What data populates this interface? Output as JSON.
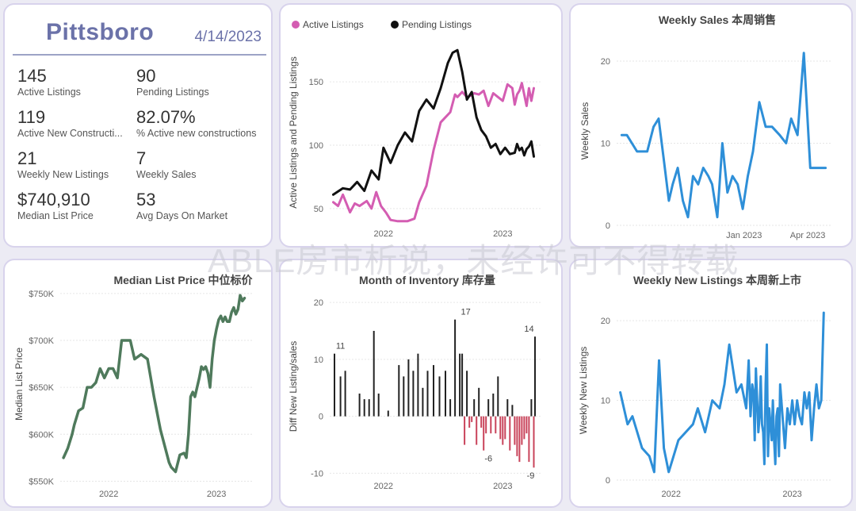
{
  "kpi": {
    "city": "Pittsboro",
    "date": "4/14/2023",
    "items": [
      {
        "value": "145",
        "label": "Active Listings"
      },
      {
        "value": "90",
        "label": "Pending Listings"
      },
      {
        "value": "119",
        "label": "Active New Constructi..."
      },
      {
        "value": "82.07%",
        "label": "% Active new constructions"
      },
      {
        "value": "21",
        "label": "Weekly New Listings"
      },
      {
        "value": "7",
        "label": "Weekly Sales"
      },
      {
        "value": "$740,910",
        "label": "Median List Price"
      },
      {
        "value": "53",
        "label": "Avg Days On Market"
      }
    ]
  },
  "watermark": "ABLE房市析说，未经许可不得转载",
  "chart_data": [
    {
      "id": "listings",
      "type": "line",
      "title": "",
      "legend": [
        "Active Listings",
        "Pending Listings"
      ],
      "legend_position": "top-left",
      "ylabel": "Active Listings and Pending Listings",
      "xlabel": "",
      "xlim": [
        2021.55,
        2023.33
      ],
      "ylim": [
        38,
        182
      ],
      "yticks": [
        50,
        100,
        150
      ],
      "xticks": [
        {
          "x": 2022.0,
          "label": "2022"
        },
        {
          "x": 2023.0,
          "label": "2023"
        }
      ],
      "colors": [
        "#d45db2",
        "#111111"
      ],
      "series": [
        {
          "name": "Active Listings",
          "x": [
            2021.58,
            2021.62,
            2021.66,
            2021.72,
            2021.76,
            2021.8,
            2021.86,
            2021.9,
            2021.94,
            2021.98,
            2022.02,
            2022.06,
            2022.12,
            2022.2,
            2022.26,
            2022.3,
            2022.36,
            2022.42,
            2022.48,
            2022.52,
            2022.56,
            2022.6,
            2022.62,
            2022.66,
            2022.7,
            2022.73,
            2022.76,
            2022.8,
            2022.84,
            2022.88,
            2022.92,
            2022.96,
            2023.0,
            2023.04,
            2023.08,
            2023.1,
            2023.12,
            2023.14,
            2023.16,
            2023.18,
            2023.2,
            2023.22,
            2023.24,
            2023.26
          ],
          "values": [
            55,
            52,
            61,
            47,
            54,
            52,
            56,
            50,
            63,
            52,
            47,
            41,
            40,
            40,
            42,
            55,
            68,
            96,
            118,
            122,
            126,
            140,
            138,
            142,
            138,
            139,
            141,
            140,
            143,
            131,
            141,
            138,
            135,
            148,
            145,
            132,
            140,
            143,
            149,
            140,
            131,
            145,
            135,
            145
          ]
        },
        {
          "name": "Pending Listings",
          "x": [
            2021.58,
            2021.66,
            2021.72,
            2021.78,
            2021.84,
            2021.9,
            2021.96,
            2022.0,
            2022.06,
            2022.12,
            2022.18,
            2022.24,
            2022.3,
            2022.36,
            2022.42,
            2022.48,
            2022.54,
            2022.58,
            2022.62,
            2022.66,
            2022.7,
            2022.74,
            2022.78,
            2022.82,
            2022.86,
            2022.9,
            2022.94,
            2022.98,
            2023.02,
            2023.06,
            2023.1,
            2023.12,
            2023.14,
            2023.16,
            2023.18,
            2023.2,
            2023.22,
            2023.24,
            2023.26
          ],
          "values": [
            61,
            66,
            65,
            71,
            64,
            80,
            73,
            98,
            86,
            100,
            110,
            103,
            127,
            136,
            129,
            145,
            165,
            173,
            175,
            158,
            136,
            142,
            122,
            112,
            107,
            98,
            101,
            93,
            98,
            93,
            94,
            101,
            96,
            98,
            92,
            97,
            99,
            103,
            91
          ]
        }
      ]
    },
    {
      "id": "weekly_sales",
      "type": "line",
      "title": "Weekly Sales 本周销售",
      "ylabel": "Weekly Sales",
      "xlabel": "",
      "xlim": [
        2022.5,
        2023.34
      ],
      "ylim": [
        0,
        23
      ],
      "yticks": [
        0,
        10,
        20
      ],
      "xticks": [
        {
          "x": 2023.0,
          "label": "Jan 2023"
        },
        {
          "x": 2023.25,
          "label": "Apr 2023"
        }
      ],
      "colors": [
        "#2e8fd8"
      ],
      "series": [
        {
          "name": "Weekly Sales",
          "x": [
            2022.52,
            2022.54,
            2022.56,
            2022.58,
            2022.6,
            2022.62,
            2022.645,
            2022.665,
            2022.685,
            2022.705,
            2022.72,
            2022.74,
            2022.76,
            2022.78,
            2022.8,
            2022.82,
            2022.84,
            2022.86,
            2022.875,
            2022.895,
            2022.915,
            2022.935,
            2022.955,
            2022.975,
            2022.995,
            2023.015,
            2023.035,
            2023.06,
            2023.085,
            2023.11,
            2023.14,
            2023.165,
            2023.185,
            2023.21,
            2023.235,
            2023.26,
            2023.285,
            2023.32
          ],
          "values": [
            11,
            11,
            10,
            9,
            9,
            9,
            12,
            13,
            8,
            3,
            5,
            7,
            3,
            1,
            6,
            5,
            7,
            6,
            5,
            1,
            10,
            4,
            6,
            5,
            2,
            6,
            9,
            15,
            12,
            12,
            11,
            10,
            13,
            11,
            21,
            7,
            7,
            7
          ]
        }
      ]
    },
    {
      "id": "median_list_price",
      "type": "line",
      "title": "Median List Price  中位标价",
      "ylabel": "Median List Price",
      "xlabel": "",
      "xlim": [
        2021.55,
        2023.33
      ],
      "ylim": [
        547000,
        760000
      ],
      "yticks": [
        {
          "v": 550000,
          "label": "$550K"
        },
        {
          "v": 600000,
          "label": "$600K"
        },
        {
          "v": 650000,
          "label": "$650K"
        },
        {
          "v": 700000,
          "label": "$700K"
        },
        {
          "v": 750000,
          "label": "$750K"
        }
      ],
      "xticks": [
        {
          "x": 2022.0,
          "label": "2022"
        },
        {
          "x": 2023.0,
          "label": "2023"
        }
      ],
      "colors": [
        "#4f7a5c"
      ],
      "series": [
        {
          "name": "Median List Price",
          "x": [
            2021.58,
            2021.62,
            2021.66,
            2021.68,
            2021.72,
            2021.76,
            2021.8,
            2021.84,
            2021.88,
            2021.92,
            2021.96,
            2022.0,
            2022.04,
            2022.08,
            2022.12,
            2022.16,
            2022.2,
            2022.24,
            2022.3,
            2022.36,
            2022.42,
            2022.48,
            2022.56,
            2022.58,
            2022.62,
            2022.66,
            2022.7,
            2022.72,
            2022.74,
            2022.76,
            2022.78,
            2022.8,
            2022.84,
            2022.86,
            2022.88,
            2022.9,
            2022.92,
            2022.94,
            2022.96,
            2022.98,
            2023.0,
            2023.02,
            2023.04,
            2023.06,
            2023.08,
            2023.1,
            2023.12,
            2023.14,
            2023.16,
            2023.18,
            2023.2,
            2023.22,
            2023.24,
            2023.26
          ],
          "values": [
            575000,
            585000,
            600000,
            610000,
            625000,
            628000,
            650000,
            650000,
            655000,
            670000,
            660000,
            670000,
            670000,
            660000,
            700000,
            700000,
            700000,
            680000,
            685000,
            680000,
            640000,
            605000,
            570000,
            565000,
            560000,
            578000,
            580000,
            575000,
            600000,
            640000,
            645000,
            640000,
            660000,
            672000,
            669000,
            672000,
            665000,
            650000,
            680000,
            700000,
            712000,
            722000,
            726000,
            720000,
            725000,
            720000,
            720000,
            730000,
            735000,
            728000,
            733000,
            748000,
            742000,
            745000
          ]
        }
      ]
    },
    {
      "id": "month_of_inventory",
      "type": "bar",
      "title": "Month of Inventory 库存量",
      "ylabel": "Diff New Listing/sales",
      "xlabel": "",
      "xlim": [
        2021.55,
        2023.33
      ],
      "ylim": [
        -10.5,
        21
      ],
      "yticks": [
        -10,
        0,
        10,
        20
      ],
      "xticks": [
        {
          "x": 2022.0,
          "label": "2022"
        },
        {
          "x": 2023.0,
          "label": "2023"
        }
      ],
      "colors": {
        "positive": "#222222",
        "negative": "#c9435a"
      },
      "data_labels": [
        {
          "x": 2021.6,
          "v": 11,
          "label": "11"
        },
        {
          "x": 2022.65,
          "v": 17,
          "label": "17"
        },
        {
          "x": 2022.84,
          "v": -6,
          "label": "-6"
        },
        {
          "x": 2023.26,
          "v": 14,
          "label": "14"
        },
        {
          "x": 2023.26,
          "v": -9,
          "label": "-9"
        }
      ],
      "series": [
        {
          "name": "Diff New Listing/sales",
          "x": [
            2021.59,
            2021.64,
            2021.68,
            2021.8,
            2021.84,
            2021.88,
            2021.92,
            2021.96,
            2022.04,
            2022.13,
            2022.17,
            2022.21,
            2022.25,
            2022.29,
            2022.33,
            2022.37,
            2022.42,
            2022.47,
            2022.52,
            2022.56,
            2022.6,
            2022.64,
            2022.66,
            2022.68,
            2022.7,
            2022.72,
            2022.74,
            2022.76,
            2022.78,
            2022.8,
            2022.82,
            2022.84,
            2022.86,
            2022.88,
            2022.9,
            2022.92,
            2022.94,
            2022.96,
            2022.98,
            2023.0,
            2023.02,
            2023.04,
            2023.06,
            2023.08,
            2023.1,
            2023.12,
            2023.14,
            2023.16,
            2023.18,
            2023.2,
            2023.22,
            2023.24,
            2023.26,
            2023.27
          ],
          "values": [
            11,
            7,
            8,
            4,
            3,
            3,
            15,
            4,
            1,
            9,
            7,
            10,
            8,
            11,
            5,
            8,
            9,
            7,
            8,
            3,
            17,
            11,
            11,
            -5,
            8,
            -2,
            -1,
            3,
            -5,
            5,
            -2,
            -6,
            -3,
            3,
            -3,
            4,
            -3,
            7,
            -4,
            -5,
            -4,
            3,
            -6,
            2,
            -5,
            -7,
            -8,
            -5,
            -4,
            -3,
            -8,
            3,
            -9,
            14
          ]
        }
      ]
    },
    {
      "id": "weekly_new_listings",
      "type": "line",
      "title": "Weekly New Listings  本周新上市",
      "ylabel": "Weekly New Listings",
      "xlabel": "",
      "xlim": [
        2021.55,
        2023.33
      ],
      "ylim": [
        -0.5,
        23
      ],
      "yticks": [
        0,
        10,
        20
      ],
      "xticks": [
        {
          "x": 2022.0,
          "label": "2022"
        },
        {
          "x": 2023.0,
          "label": "2023"
        }
      ],
      "colors": [
        "#2e8fd8"
      ],
      "series": [
        {
          "name": "Weekly New Listings",
          "x": [
            2021.58,
            2021.64,
            2021.68,
            2021.76,
            2021.82,
            2021.86,
            2021.9,
            2021.94,
            2021.98,
            2022.02,
            2022.06,
            2022.12,
            2022.18,
            2022.22,
            2022.28,
            2022.34,
            2022.4,
            2022.44,
            2022.48,
            2022.54,
            2022.58,
            2022.62,
            2022.64,
            2022.655,
            2022.67,
            2022.68,
            2022.69,
            2022.7,
            2022.71,
            2022.72,
            2022.73,
            2022.74,
            2022.75,
            2022.76,
            2022.77,
            2022.78,
            2022.79,
            2022.8,
            2022.81,
            2022.82,
            2022.83,
            2022.84,
            2022.85,
            2022.86,
            2022.87,
            2022.88,
            2022.89,
            2022.9,
            2022.92,
            2022.94,
            2022.96,
            2022.98,
            2023.0,
            2023.02,
            2023.04,
            2023.06,
            2023.08,
            2023.1,
            2023.12,
            2023.14,
            2023.16,
            2023.18,
            2023.2,
            2023.22,
            2023.24,
            2023.26
          ],
          "values": [
            11,
            7,
            8,
            4,
            3,
            1,
            15,
            4,
            1,
            3,
            5,
            6,
            7,
            9,
            6,
            10,
            9,
            12,
            17,
            11,
            12,
            9,
            15,
            8,
            12,
            11,
            5,
            14,
            10,
            6,
            8,
            13,
            7,
            6,
            2,
            12,
            17,
            3,
            9,
            7,
            5,
            10,
            5,
            2,
            8,
            9,
            3,
            12,
            8,
            4,
            9,
            7,
            10,
            7,
            10,
            8,
            7,
            11,
            9,
            11,
            5,
            9,
            12,
            9,
            10,
            21
          ]
        }
      ]
    }
  ]
}
